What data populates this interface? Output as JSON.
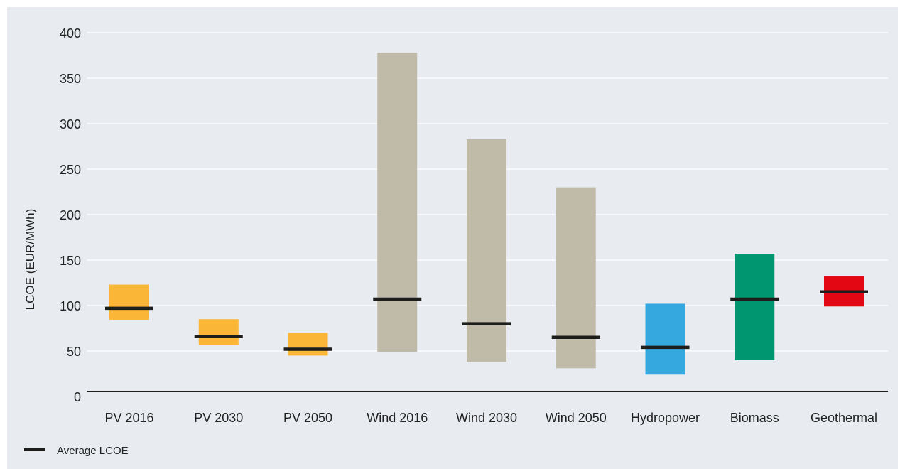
{
  "chart_data": {
    "type": "floating-bar",
    "title": "",
    "xlabel": "",
    "ylabel": "LCOE (EUR/MWh)",
    "ylim": [
      0,
      400
    ],
    "yticks": [
      0,
      50,
      100,
      150,
      200,
      250,
      300,
      350,
      400
    ],
    "grid": true,
    "categories": [
      "PV 2016",
      "PV 2030",
      "PV 2050",
      "Wind 2016",
      "Wind 2030",
      "Wind 2050",
      "Hydropower",
      "Biomass",
      "Geothermal"
    ],
    "ranges": [
      {
        "low": 84,
        "high": 123,
        "average": 97,
        "color": "#F9B637"
      },
      {
        "low": 57,
        "high": 85,
        "average": 66,
        "color": "#F9B637"
      },
      {
        "low": 45,
        "high": 70,
        "average": 52,
        "color": "#F9B637"
      },
      {
        "low": 49,
        "high": 378,
        "average": 107,
        "color": "#C0BAA9"
      },
      {
        "low": 38,
        "high": 283,
        "average": 80,
        "color": "#C0BAA9"
      },
      {
        "low": 31,
        "high": 230,
        "average": 65,
        "color": "#C0BAA9"
      },
      {
        "low": 24,
        "high": 102,
        "average": 54,
        "color": "#35A8E0"
      },
      {
        "low": 40,
        "high": 157,
        "average": 107,
        "color": "#00966F"
      },
      {
        "low": 99,
        "high": 132,
        "average": 115,
        "color": "#E30613"
      }
    ],
    "legend": {
      "label": "Average LCOE",
      "position": "bottom-left"
    }
  },
  "colors": {
    "background": "#E8ECF1",
    "grid": "#FFFFFF",
    "average_marker": "#1D1D1B",
    "axis": "#1D1D1B"
  }
}
